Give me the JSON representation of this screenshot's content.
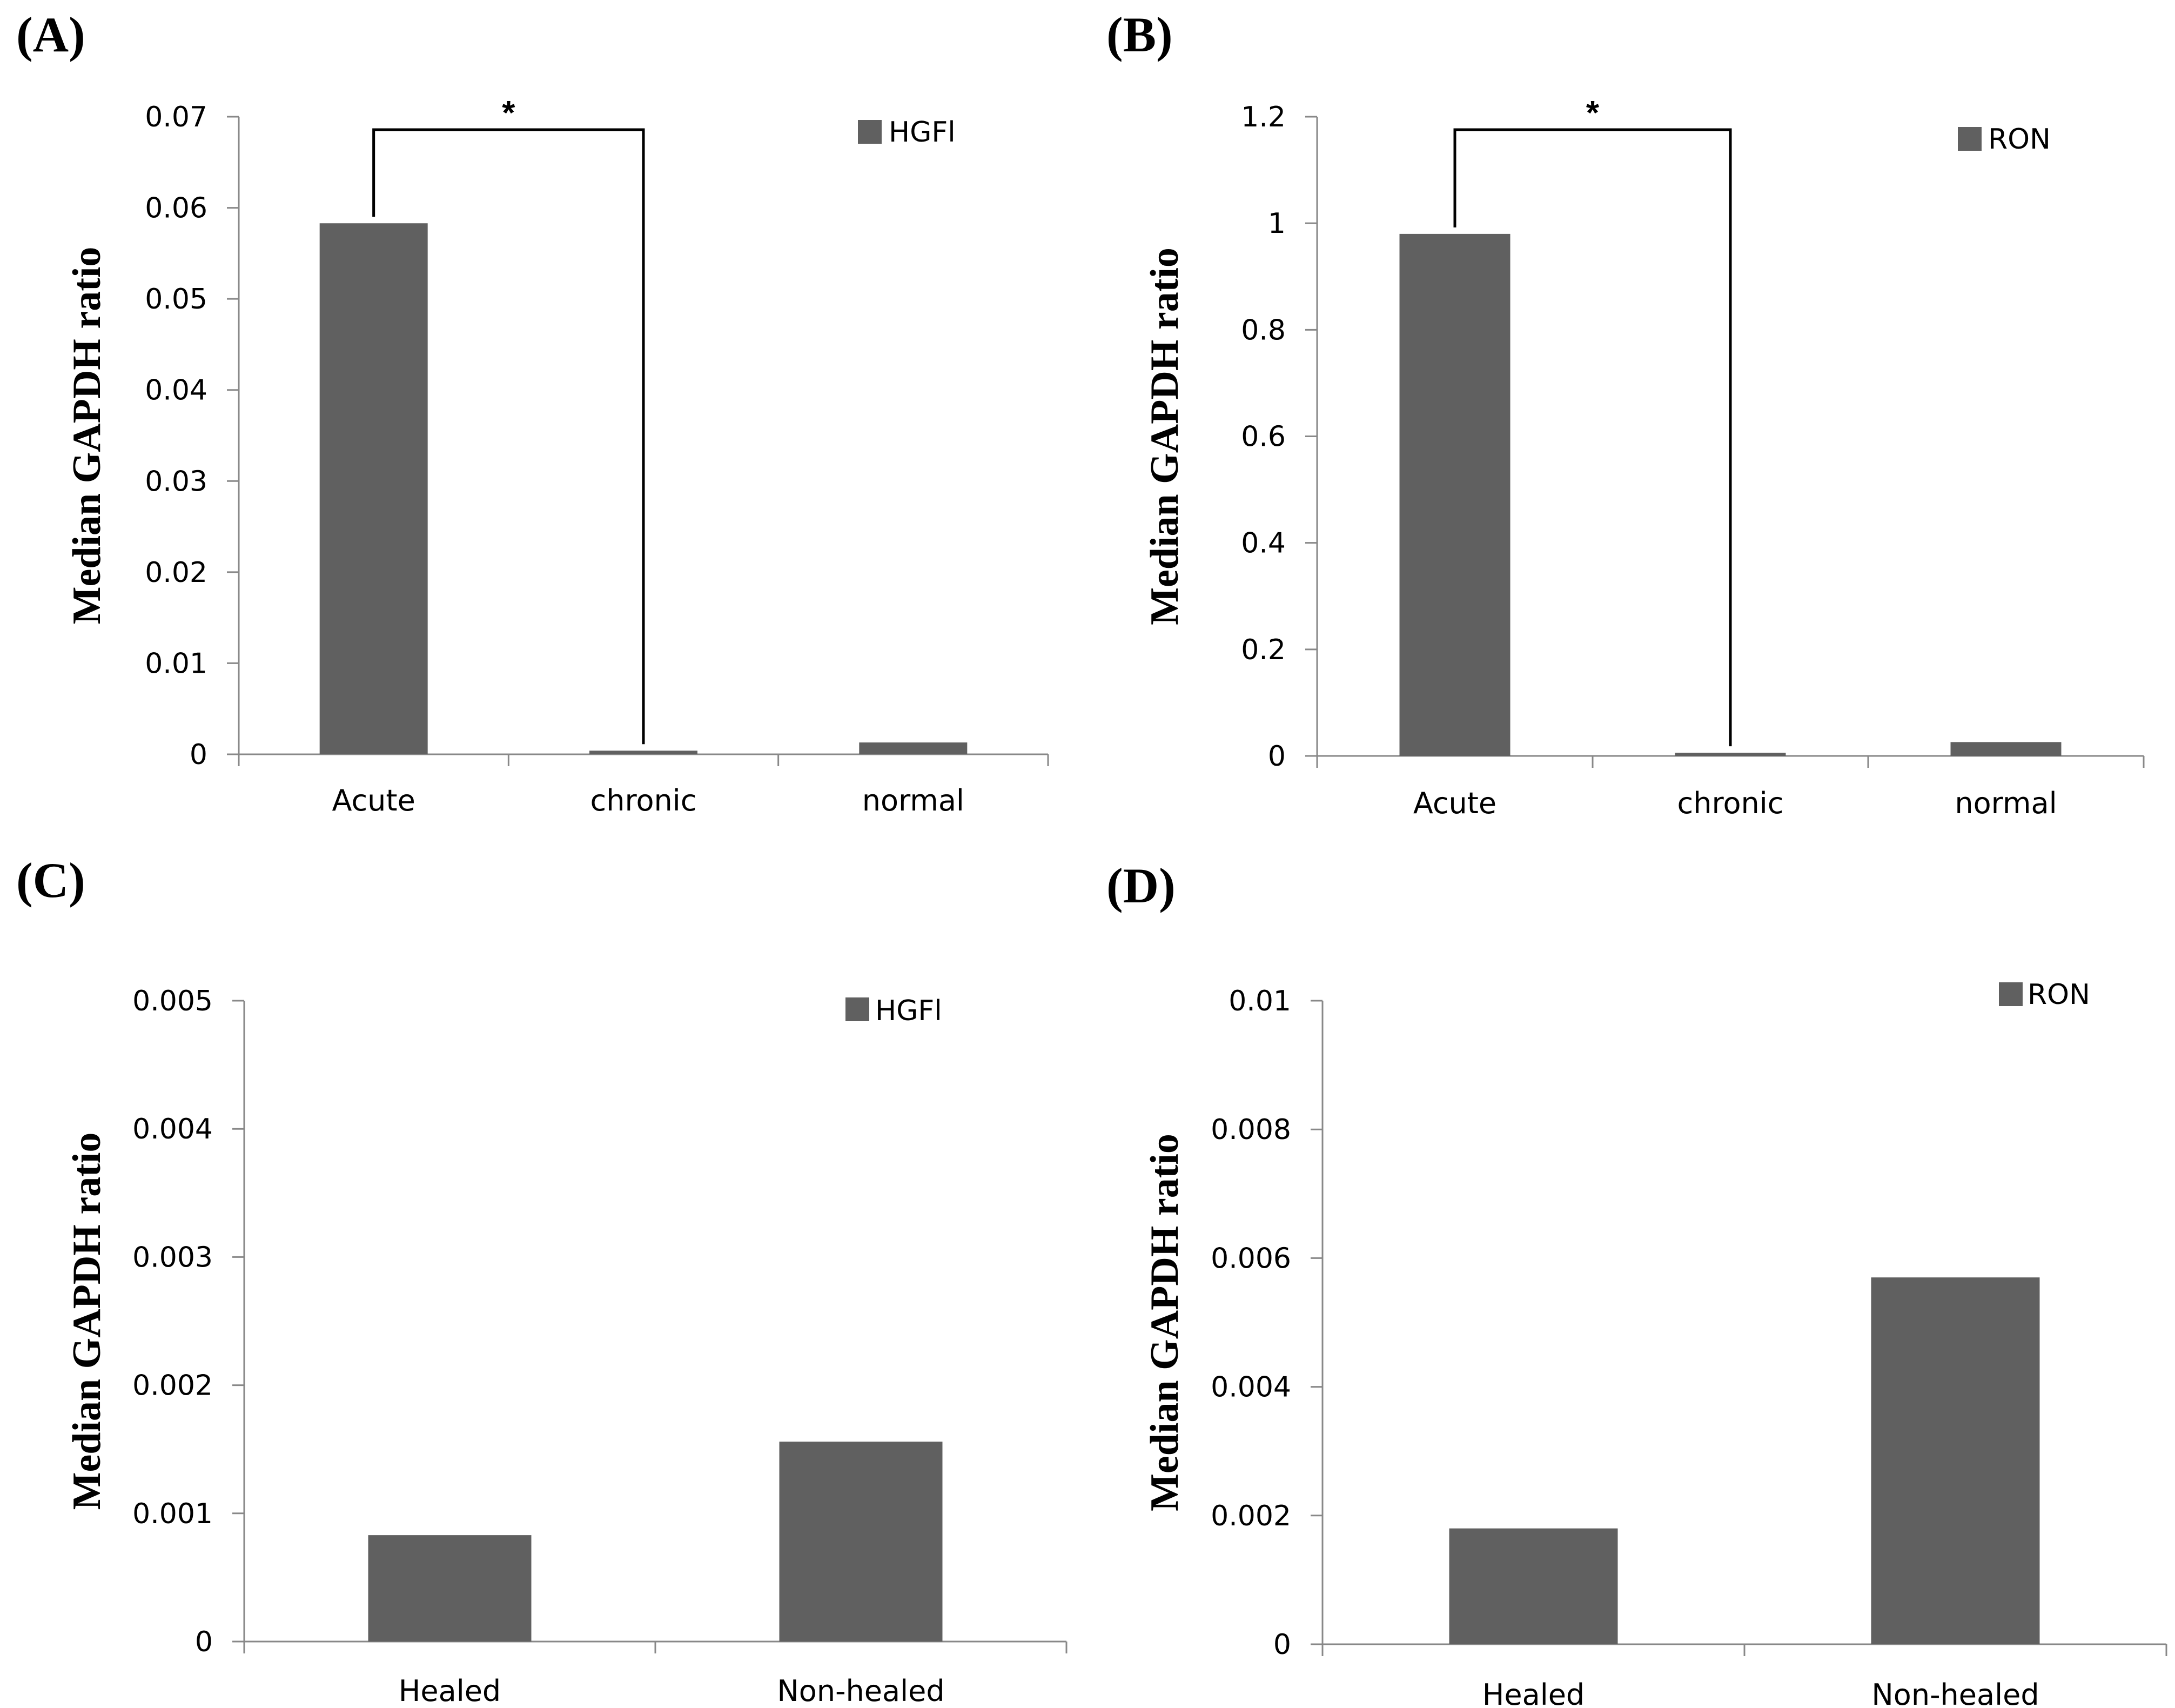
{
  "colors": {
    "bar": "#606060",
    "axis": "#888888",
    "text": "#000000",
    "background": "#ffffff"
  },
  "chart_data": [
    {
      "type": "bar",
      "panel": "(A)",
      "legend": "HGFl",
      "ylabel": "Median GAPDH ratio",
      "xlabel": "",
      "categories": [
        "Acute",
        "chronic",
        "normal"
      ],
      "values": [
        0.0583,
        0.0004,
        0.0013
      ],
      "ylim": [
        0,
        0.07
      ],
      "yticks": [
        "0",
        "0.01",
        "0.02",
        "0.03",
        "0.04",
        "0.05",
        "0.06",
        "0.07"
      ],
      "significance": {
        "from": 0,
        "to": 1,
        "label": "*"
      }
    },
    {
      "type": "bar",
      "panel": "(B)",
      "legend": "RON",
      "ylabel": "Median GAPDH ratio",
      "xlabel": "",
      "categories": [
        "Acute",
        "chronic",
        "normal"
      ],
      "values": [
        0.98,
        0.006,
        0.026
      ],
      "ylim": [
        0,
        1.2
      ],
      "yticks": [
        "0",
        "0.2",
        "0.4",
        "0.6",
        "0.8",
        "1",
        "1.2"
      ],
      "significance": {
        "from": 0,
        "to": 1,
        "label": "*"
      }
    },
    {
      "type": "bar",
      "panel": "(C)",
      "legend": "HGFl",
      "ylabel": "Median GAPDH ratio",
      "xlabel": "",
      "categories": [
        "Healed",
        "Non-healed"
      ],
      "values": [
        0.00083,
        0.00156
      ],
      "ylim": [
        0,
        0.005
      ],
      "yticks": [
        "0",
        "0.001",
        "0.002",
        "0.003",
        "0.004",
        "0.005"
      ]
    },
    {
      "type": "bar",
      "panel": "(D)",
      "legend": "RON",
      "ylabel": "Median GAPDH ratio",
      "xlabel": "",
      "categories": [
        "Healed",
        "Non-healed"
      ],
      "values": [
        0.0018,
        0.0057
      ],
      "ylim": [
        0,
        0.01
      ],
      "yticks": [
        "0",
        "0.002",
        "0.004",
        "0.006",
        "0.008",
        "0.01"
      ]
    }
  ]
}
